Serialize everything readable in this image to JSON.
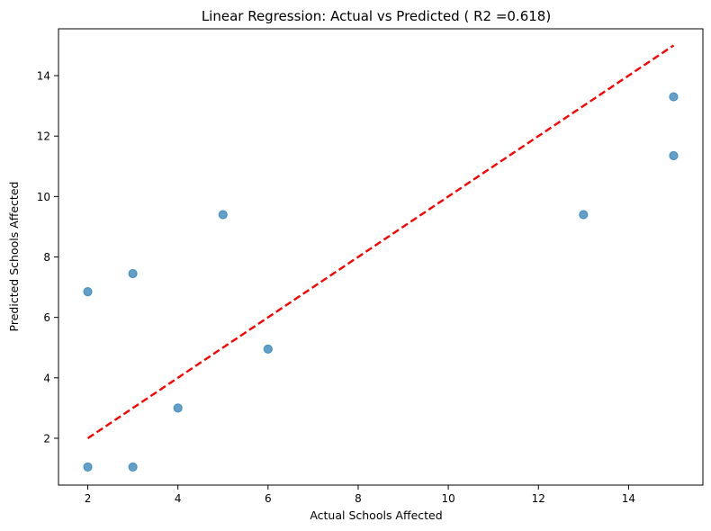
{
  "chart_data": {
    "type": "scatter",
    "title": "Linear Regression: Actual vs Predicted ( R2 =0.618)",
    "xlabel": "Actual Schools Affected",
    "ylabel": "Predicted Schools Affected",
    "xlim": [
      1.35,
      15.65
    ],
    "ylim": [
      0.45,
      15.55
    ],
    "xticks": [
      2,
      4,
      6,
      8,
      10,
      12,
      14
    ],
    "yticks": [
      2,
      4,
      6,
      8,
      10,
      12,
      14
    ],
    "grid": false,
    "series": [
      {
        "points": [
          [
            2,
            6.85
          ],
          [
            2,
            1.05
          ],
          [
            3,
            7.45
          ],
          [
            3,
            1.05
          ],
          [
            4,
            3.0
          ],
          [
            5,
            9.4
          ],
          [
            6,
            4.95
          ],
          [
            13,
            9.4
          ],
          [
            15,
            13.3
          ],
          [
            15,
            11.35
          ]
        ],
        "color": "#1f77b4"
      }
    ],
    "reference_line": {
      "from": [
        2,
        2
      ],
      "to": [
        15,
        15
      ],
      "color": "#ff0000",
      "style": "dashed"
    }
  }
}
